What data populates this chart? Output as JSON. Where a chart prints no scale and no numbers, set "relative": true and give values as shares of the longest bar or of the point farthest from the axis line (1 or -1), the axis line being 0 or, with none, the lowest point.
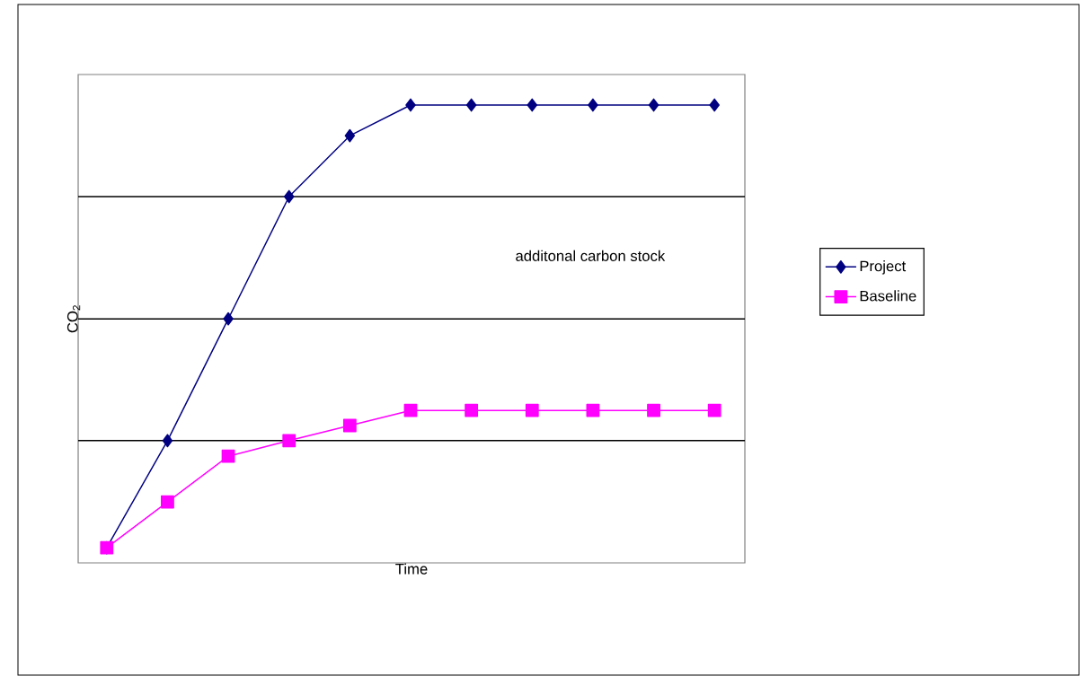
{
  "chart_data": {
    "type": "line",
    "relative": true,
    "xlabel": "Time",
    "ylabel": "CO$_{2}$",
    "categories": [
      null,
      null,
      null,
      null,
      null,
      null,
      null,
      null,
      null,
      null,
      null
    ],
    "series": [
      {
        "name": "Project",
        "color": "#000080",
        "marker": "diamond",
        "values": [
          0.033,
          0.267,
          0.533,
          0.8,
          0.933,
          1,
          1,
          1,
          1,
          1,
          1
        ]
      },
      {
        "name": "Baseline",
        "color": "#ff00ff",
        "marker": "square",
        "values": [
          0.033,
          0.133,
          0.233,
          0.267,
          0.3,
          0.333,
          0.333,
          0.333,
          0.333,
          0.333,
          0.333
        ]
      }
    ],
    "ref_lines": [
      {
        "axis": "y",
        "value": 0.267,
        "color": "#000000"
      },
      {
        "axis": "y",
        "value": 0.533,
        "color": "#000000"
      },
      {
        "axis": "y",
        "value": 0.8,
        "color": "#000000"
      }
    ],
    "annotations": [
      "additonal carbon stock"
    ],
    "legend": "right"
  }
}
